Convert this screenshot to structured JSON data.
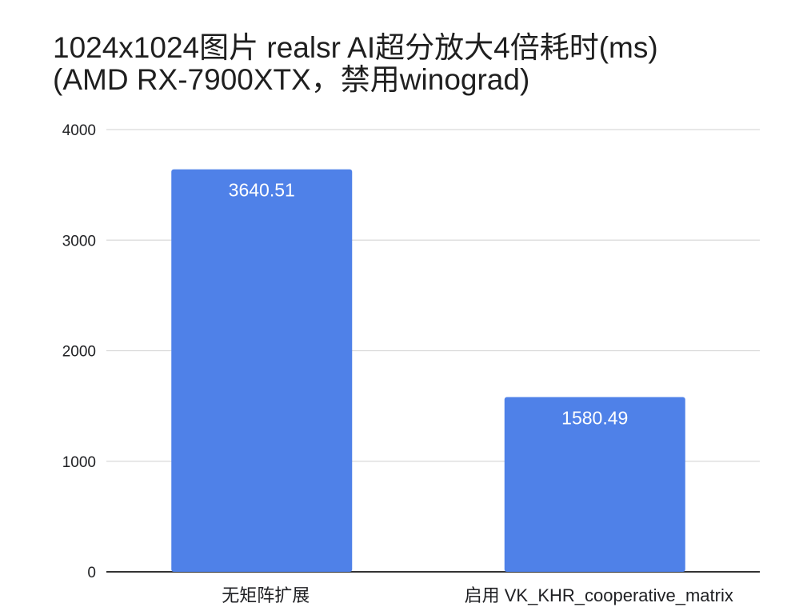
{
  "chart_data": {
    "type": "bar",
    "title": "1024x1024图片 realsr AI超分放大4倍耗时(ms)",
    "subtitle": "(AMD RX-7900XTX，禁用winograd)",
    "categories": [
      "无矩阵扩展",
      "启用 VK_KHR_cooperative_matrix"
    ],
    "values": [
      3640.51,
      1580.49
    ],
    "data_labels": [
      "3640.51",
      "1580.49"
    ],
    "xlabel": "",
    "ylabel": "",
    "ylim": [
      0,
      4000
    ],
    "yticks": [
      0,
      1000,
      2000,
      3000,
      4000
    ],
    "ytick_labels": [
      "0",
      "1000",
      "2000",
      "3000",
      "4000"
    ],
    "grid": true,
    "legend": "none",
    "colors": {
      "bar": "#4f81e8",
      "grid": "#d9d9d9",
      "axis": "#333333"
    }
  }
}
